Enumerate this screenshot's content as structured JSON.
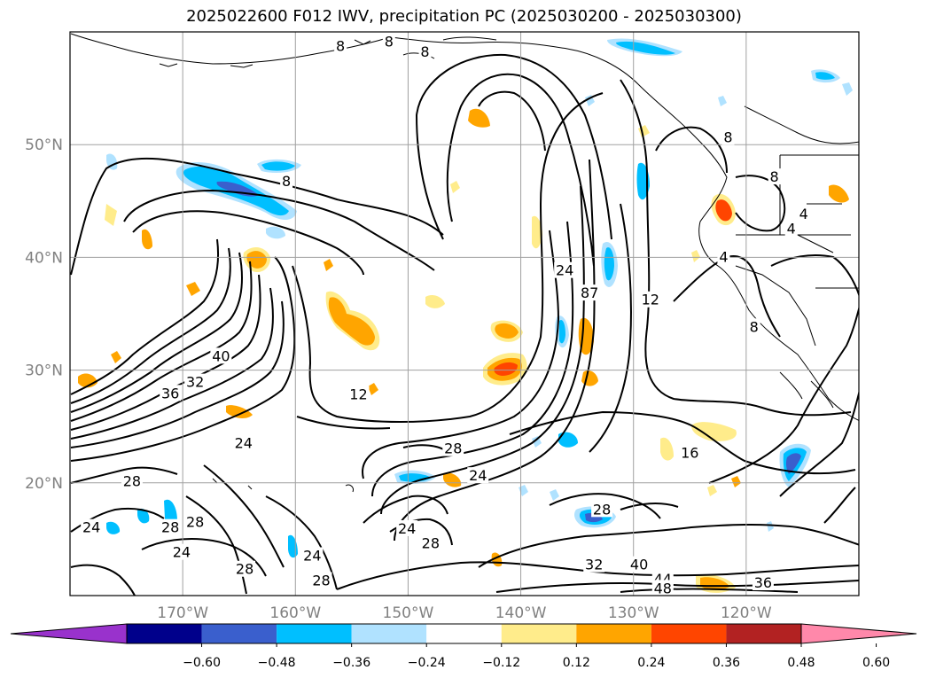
{
  "title": "2025022600 F012 IWV, precipitation PC (2025030200 - 2025030300)",
  "map": {
    "lon_range": [
      -180,
      -110
    ],
    "lat_range": [
      10,
      60
    ],
    "lat_ticks": [
      {
        "value": 50,
        "label": "50°N"
      },
      {
        "value": 40,
        "label": "40°N"
      },
      {
        "value": 30,
        "label": "30°N"
      },
      {
        "value": 20,
        "label": "20°N"
      }
    ],
    "lon_ticks": [
      {
        "value": -170,
        "label": "170°W"
      },
      {
        "value": -160,
        "label": "160°W"
      },
      {
        "value": -150,
        "label": "150°W"
      },
      {
        "value": -140,
        "label": "140°W"
      },
      {
        "value": -130,
        "label": "130°W"
      },
      {
        "value": -120,
        "label": "120°W"
      }
    ],
    "grid": true
  },
  "colorbar": {
    "colors": [
      "#9932cc",
      "#00008b",
      "#3a5fcd",
      "#00bfff",
      "#b0e2ff",
      "#ffffff",
      "#ffec8b",
      "#ffa500",
      "#ff4500",
      "#b22222",
      "#ff88aa"
    ],
    "tick_labels": [
      "−0.60",
      "−0.48",
      "−0.36",
      "−0.24",
      "−0.12",
      "0.12",
      "0.24",
      "0.36",
      "0.48",
      "0.60"
    ],
    "extend": "both"
  },
  "contour_labels": [
    {
      "text": "8",
      "lon": -160.8,
      "lat": 46.7
    },
    {
      "text": "12",
      "lon": -154.4,
      "lat": 27.8
    },
    {
      "text": "40",
      "lon": -166.6,
      "lat": 31.2
    },
    {
      "text": "32",
      "lon": -168.9,
      "lat": 28.9
    },
    {
      "text": "36",
      "lon": -171.1,
      "lat": 27.9
    },
    {
      "text": "24",
      "lon": -164.6,
      "lat": 23.5
    },
    {
      "text": "28",
      "lon": -174.5,
      "lat": 20.1
    },
    {
      "text": "24",
      "lon": -178.1,
      "lat": 16.0
    },
    {
      "text": "28",
      "lon": -171.1,
      "lat": 16.0
    },
    {
      "text": "28",
      "lon": -168.9,
      "lat": 16.5
    },
    {
      "text": "24",
      "lon": -170.1,
      "lat": 13.8
    },
    {
      "text": "28",
      "lon": -164.5,
      "lat": 12.3
    },
    {
      "text": "24",
      "lon": -158.5,
      "lat": 13.5
    },
    {
      "text": "28",
      "lon": -157.7,
      "lat": 11.3
    },
    {
      "text": "24",
      "lon": -150.1,
      "lat": 15.9
    },
    {
      "text": "28",
      "lon": -148.0,
      "lat": 14.6
    },
    {
      "text": "28",
      "lon": -146.0,
      "lat": 23.0
    },
    {
      "text": "24",
      "lon": -143.8,
      "lat": 20.6
    },
    {
      "text": "28",
      "lon": -132.8,
      "lat": 17.6
    },
    {
      "text": "24",
      "lon": -136.1,
      "lat": 38.8
    },
    {
      "text": "87",
      "lon": -133.9,
      "lat": 36.8
    },
    {
      "text": "12",
      "lon": -128.5,
      "lat": 36.2
    },
    {
      "text": "16",
      "lon": -125.0,
      "lat": 22.6
    },
    {
      "text": "32",
      "lon": -133.5,
      "lat": 12.7
    },
    {
      "text": "40",
      "lon": -129.5,
      "lat": 12.7
    },
    {
      "text": "44",
      "lon": -127.4,
      "lat": 11.4
    },
    {
      "text": "48",
      "lon": -127.4,
      "lat": 10.6
    },
    {
      "text": "36",
      "lon": -118.5,
      "lat": 11.1
    },
    {
      "text": "4",
      "lon": -122.0,
      "lat": 40.0
    },
    {
      "text": "4",
      "lon": -114.9,
      "lat": 43.8
    },
    {
      "text": "4",
      "lon": -116.0,
      "lat": 42.5
    },
    {
      "text": "8",
      "lon": -117.5,
      "lat": 47.1
    },
    {
      "text": "8",
      "lon": -121.6,
      "lat": 50.6
    },
    {
      "text": "8",
      "lon": -119.3,
      "lat": 33.8
    },
    {
      "text": "8",
      "lon": -151.7,
      "lat": 59.1
    },
    {
      "text": "8",
      "lon": -148.5,
      "lat": 58.2
    },
    {
      "text": "8",
      "lon": -156.0,
      "lat": 58.7
    }
  ]
}
